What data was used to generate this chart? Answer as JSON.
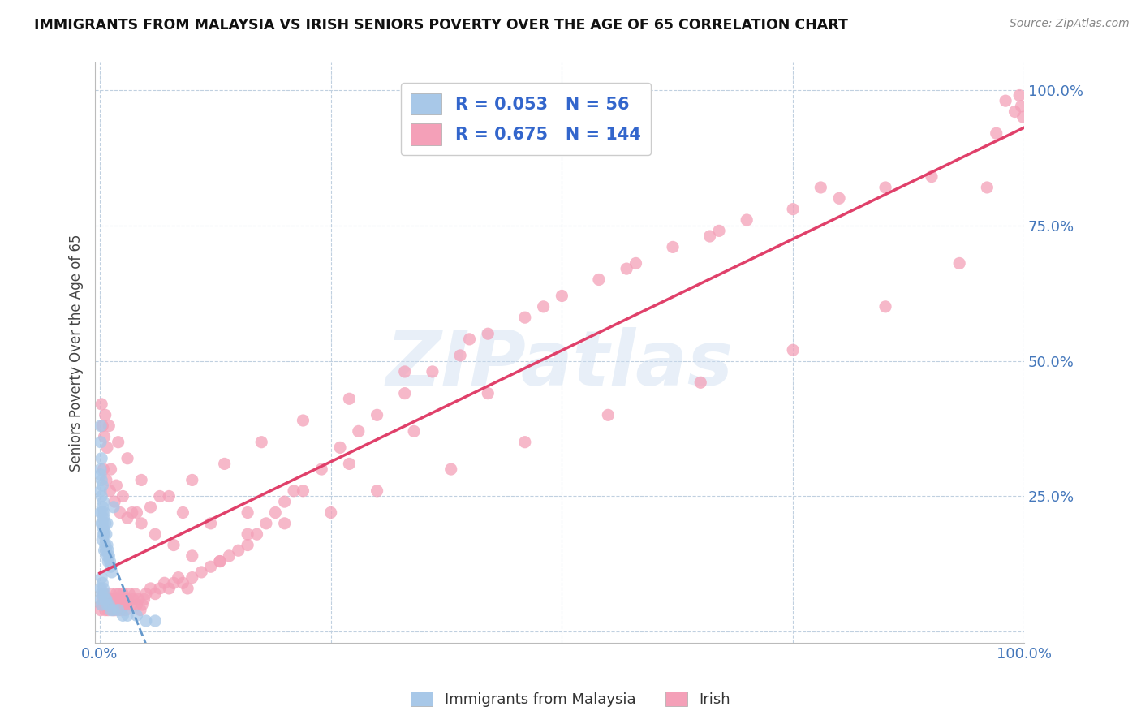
{
  "title": "IMMIGRANTS FROM MALAYSIA VS IRISH SENIORS POVERTY OVER THE AGE OF 65 CORRELATION CHART",
  "source": "Source: ZipAtlas.com",
  "ylabel": "Seniors Poverty Over the Age of 65",
  "xlim": [
    -0.005,
    1.0
  ],
  "ylim": [
    -0.02,
    1.05
  ],
  "xtick_vals": [
    0,
    0.25,
    0.5,
    0.75,
    1.0
  ],
  "ytick_vals": [
    0,
    0.25,
    0.5,
    0.75,
    1.0
  ],
  "xtick_labels": [
    "0.0%",
    "",
    "",
    "",
    "100.0%"
  ],
  "ytick_labels": [
    "",
    "25.0%",
    "50.0%",
    "75.0%",
    "100.0%"
  ],
  "blue_R": 0.053,
  "blue_N": 56,
  "pink_R": 0.675,
  "pink_N": 144,
  "blue_color": "#a8c8e8",
  "pink_color": "#f4a0b8",
  "blue_trend_color": "#6699cc",
  "pink_trend_color": "#e0406a",
  "watermark": "ZIPatlas",
  "legend_label_blue": "Immigrants from Malaysia",
  "legend_label_pink": "Irish",
  "blue_scatter_x": [
    0.001,
    0.001,
    0.001,
    0.001,
    0.002,
    0.002,
    0.002,
    0.002,
    0.003,
    0.003,
    0.003,
    0.003,
    0.004,
    0.004,
    0.004,
    0.005,
    0.005,
    0.005,
    0.006,
    0.006,
    0.007,
    0.007,
    0.008,
    0.008,
    0.009,
    0.009,
    0.01,
    0.011,
    0.012,
    0.013,
    0.001,
    0.001,
    0.001,
    0.002,
    0.002,
    0.003,
    0.004,
    0.005,
    0.006,
    0.007,
    0.008,
    0.01,
    0.012,
    0.015,
    0.02,
    0.025,
    0.03,
    0.04,
    0.05,
    0.06,
    0.001,
    0.002,
    0.003,
    0.004,
    0.008,
    0.015
  ],
  "blue_scatter_y": [
    0.38,
    0.3,
    0.26,
    0.22,
    0.32,
    0.28,
    0.25,
    0.2,
    0.27,
    0.23,
    0.2,
    0.17,
    0.24,
    0.21,
    0.18,
    0.22,
    0.18,
    0.15,
    0.2,
    0.16,
    0.18,
    0.15,
    0.16,
    0.14,
    0.15,
    0.13,
    0.14,
    0.13,
    0.12,
    0.11,
    0.35,
    0.29,
    0.08,
    0.1,
    0.07,
    0.09,
    0.08,
    0.07,
    0.06,
    0.06,
    0.05,
    0.05,
    0.04,
    0.04,
    0.04,
    0.03,
    0.03,
    0.03,
    0.02,
    0.02,
    0.06,
    0.05,
    0.22,
    0.19,
    0.2,
    0.23
  ],
  "pink_scatter_x": [
    0.001,
    0.002,
    0.003,
    0.004,
    0.005,
    0.006,
    0.007,
    0.008,
    0.009,
    0.01,
    0.011,
    0.012,
    0.013,
    0.014,
    0.015,
    0.016,
    0.017,
    0.018,
    0.019,
    0.02,
    0.021,
    0.022,
    0.023,
    0.024,
    0.025,
    0.026,
    0.027,
    0.028,
    0.029,
    0.03,
    0.032,
    0.034,
    0.036,
    0.038,
    0.04,
    0.042,
    0.044,
    0.046,
    0.048,
    0.05,
    0.055,
    0.06,
    0.065,
    0.07,
    0.075,
    0.08,
    0.085,
    0.09,
    0.095,
    0.1,
    0.11,
    0.12,
    0.13,
    0.14,
    0.15,
    0.16,
    0.17,
    0.18,
    0.19,
    0.2,
    0.22,
    0.24,
    0.26,
    0.28,
    0.3,
    0.33,
    0.36,
    0.39,
    0.42,
    0.46,
    0.5,
    0.54,
    0.58,
    0.62,
    0.66,
    0.7,
    0.75,
    0.8,
    0.85,
    0.9,
    0.003,
    0.005,
    0.008,
    0.012,
    0.018,
    0.025,
    0.035,
    0.045,
    0.06,
    0.08,
    0.1,
    0.13,
    0.16,
    0.2,
    0.25,
    0.3,
    0.38,
    0.46,
    0.55,
    0.65,
    0.75,
    0.85,
    0.93,
    0.96,
    0.97,
    0.98,
    0.99,
    0.995,
    0.997,
    0.999,
    0.004,
    0.007,
    0.011,
    0.016,
    0.022,
    0.03,
    0.04,
    0.055,
    0.075,
    0.1,
    0.135,
    0.175,
    0.22,
    0.27,
    0.33,
    0.4,
    0.48,
    0.57,
    0.67,
    0.78,
    0.002,
    0.006,
    0.01,
    0.02,
    0.03,
    0.045,
    0.065,
    0.09,
    0.12,
    0.16,
    0.21,
    0.27,
    0.34,
    0.42
  ],
  "pink_scatter_y": [
    0.04,
    0.05,
    0.06,
    0.07,
    0.05,
    0.04,
    0.05,
    0.06,
    0.04,
    0.05,
    0.06,
    0.07,
    0.05,
    0.04,
    0.06,
    0.05,
    0.04,
    0.07,
    0.05,
    0.06,
    0.07,
    0.05,
    0.04,
    0.06,
    0.07,
    0.05,
    0.06,
    0.04,
    0.05,
    0.06,
    0.07,
    0.05,
    0.06,
    0.07,
    0.05,
    0.06,
    0.04,
    0.05,
    0.06,
    0.07,
    0.08,
    0.07,
    0.08,
    0.09,
    0.08,
    0.09,
    0.1,
    0.09,
    0.08,
    0.1,
    0.11,
    0.12,
    0.13,
    0.14,
    0.15,
    0.16,
    0.18,
    0.2,
    0.22,
    0.24,
    0.26,
    0.3,
    0.34,
    0.37,
    0.4,
    0.44,
    0.48,
    0.51,
    0.55,
    0.58,
    0.62,
    0.65,
    0.68,
    0.71,
    0.73,
    0.76,
    0.78,
    0.8,
    0.82,
    0.84,
    0.38,
    0.36,
    0.34,
    0.3,
    0.27,
    0.25,
    0.22,
    0.2,
    0.18,
    0.16,
    0.14,
    0.13,
    0.18,
    0.2,
    0.22,
    0.26,
    0.3,
    0.35,
    0.4,
    0.46,
    0.52,
    0.6,
    0.68,
    0.82,
    0.92,
    0.98,
    0.96,
    0.99,
    0.97,
    0.95,
    0.3,
    0.28,
    0.26,
    0.24,
    0.22,
    0.21,
    0.22,
    0.23,
    0.25,
    0.28,
    0.31,
    0.35,
    0.39,
    0.43,
    0.48,
    0.54,
    0.6,
    0.67,
    0.74,
    0.82,
    0.42,
    0.4,
    0.38,
    0.35,
    0.32,
    0.28,
    0.25,
    0.22,
    0.2,
    0.22,
    0.26,
    0.31,
    0.37,
    0.44
  ]
}
